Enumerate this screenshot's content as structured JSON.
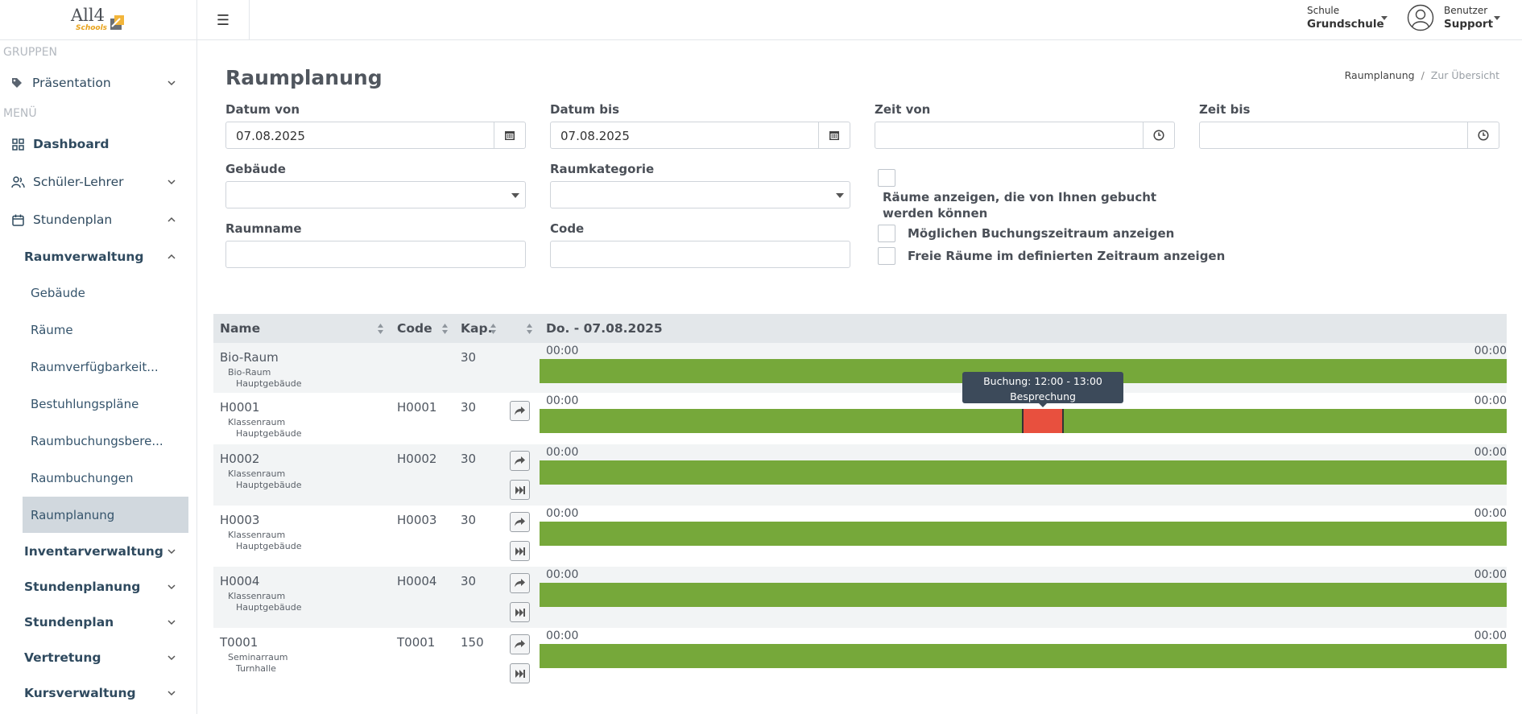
{
  "logo": {
    "main": "All4",
    "sub": "Schools"
  },
  "sidebar": {
    "groups_label": "GRUPPEN",
    "menu_label": "MENÜ",
    "praesentation": "Präsentation",
    "dashboard": "Dashboard",
    "schueler_lehrer": "Schüler-Lehrer",
    "stundenplan": "Stundenplan",
    "raumverwaltung": "Raumverwaltung",
    "sub_items": [
      "Gebäude",
      "Räume",
      "Raumverfügbarkeit...",
      "Bestuhlungspläne",
      "Raumbuchungsbere...",
      "Raumbuchungen",
      "Raumplanung"
    ],
    "sections": [
      "Inventarverwaltung",
      "Stundenplanung",
      "Stundenplan",
      "Vertretung",
      "Kursverwaltung"
    ]
  },
  "topbar": {
    "school_label": "Schule",
    "school_value": "Grundschule",
    "user_label": "Benutzer",
    "user_value": "Support"
  },
  "page": {
    "title": "Raumplanung",
    "breadcrumb_current": "Raumplanung",
    "breadcrumb_link": "Zur Übersicht"
  },
  "form": {
    "datum_von_label": "Datum von",
    "datum_von_value": "07.08.2025",
    "datum_bis_label": "Datum bis",
    "datum_bis_value": "07.08.2025",
    "zeit_von_label": "Zeit von",
    "zeit_von_value": "",
    "zeit_bis_label": "Zeit bis",
    "zeit_bis_value": "",
    "gebaeude_label": "Gebäude",
    "raumkategorie_label": "Raumkategorie",
    "raumname_label": "Raumname",
    "code_label": "Code",
    "chk_bookable": "Räume anzeigen, die von Ihnen gebucht werden können",
    "chk_booking_period": "Möglichen Buchungszeitraum anzeigen",
    "chk_free_rooms": "Freie Räume im definierten Zeitraum anzeigen"
  },
  "table": {
    "headers": {
      "name": "Name",
      "code": "Code",
      "cap": "Kap.",
      "day": "Do. - 07.08.2025"
    },
    "rows": [
      {
        "name": "Bio-Raum",
        "category": "Bio-Raum",
        "building": "Hauptgebäude",
        "code": "",
        "cap": "30",
        "start": "00:00",
        "end": "00:00"
      },
      {
        "name": "H0001",
        "category": "Klassenraum",
        "building": "Hauptgebäude",
        "code": "H0001",
        "cap": "30",
        "start": "00:00",
        "end": "00:00"
      },
      {
        "name": "H0002",
        "category": "Klassenraum",
        "building": "Hauptgebäude",
        "code": "H0002",
        "cap": "30",
        "start": "00:00",
        "end": "00:00"
      },
      {
        "name": "H0003",
        "category": "Klassenraum",
        "building": "Hauptgebäude",
        "code": "H0003",
        "cap": "30",
        "start": "00:00",
        "end": "00:00"
      },
      {
        "name": "H0004",
        "category": "Klassenraum",
        "building": "Hauptgebäude",
        "code": "H0004",
        "cap": "30",
        "start": "00:00",
        "end": "00:00"
      },
      {
        "name": "T0001",
        "category": "Seminarraum",
        "building": "Turnhalle",
        "code": "T0001",
        "cap": "150",
        "start": "00:00",
        "end": "00:00"
      }
    ],
    "tooltip": {
      "line1": "Buchung: 12:00 - 13:00",
      "line2": "Besprechung"
    }
  },
  "colors": {
    "free": "#76a83a",
    "booked": "#e8503e",
    "active_nav": "#d1d8de"
  }
}
